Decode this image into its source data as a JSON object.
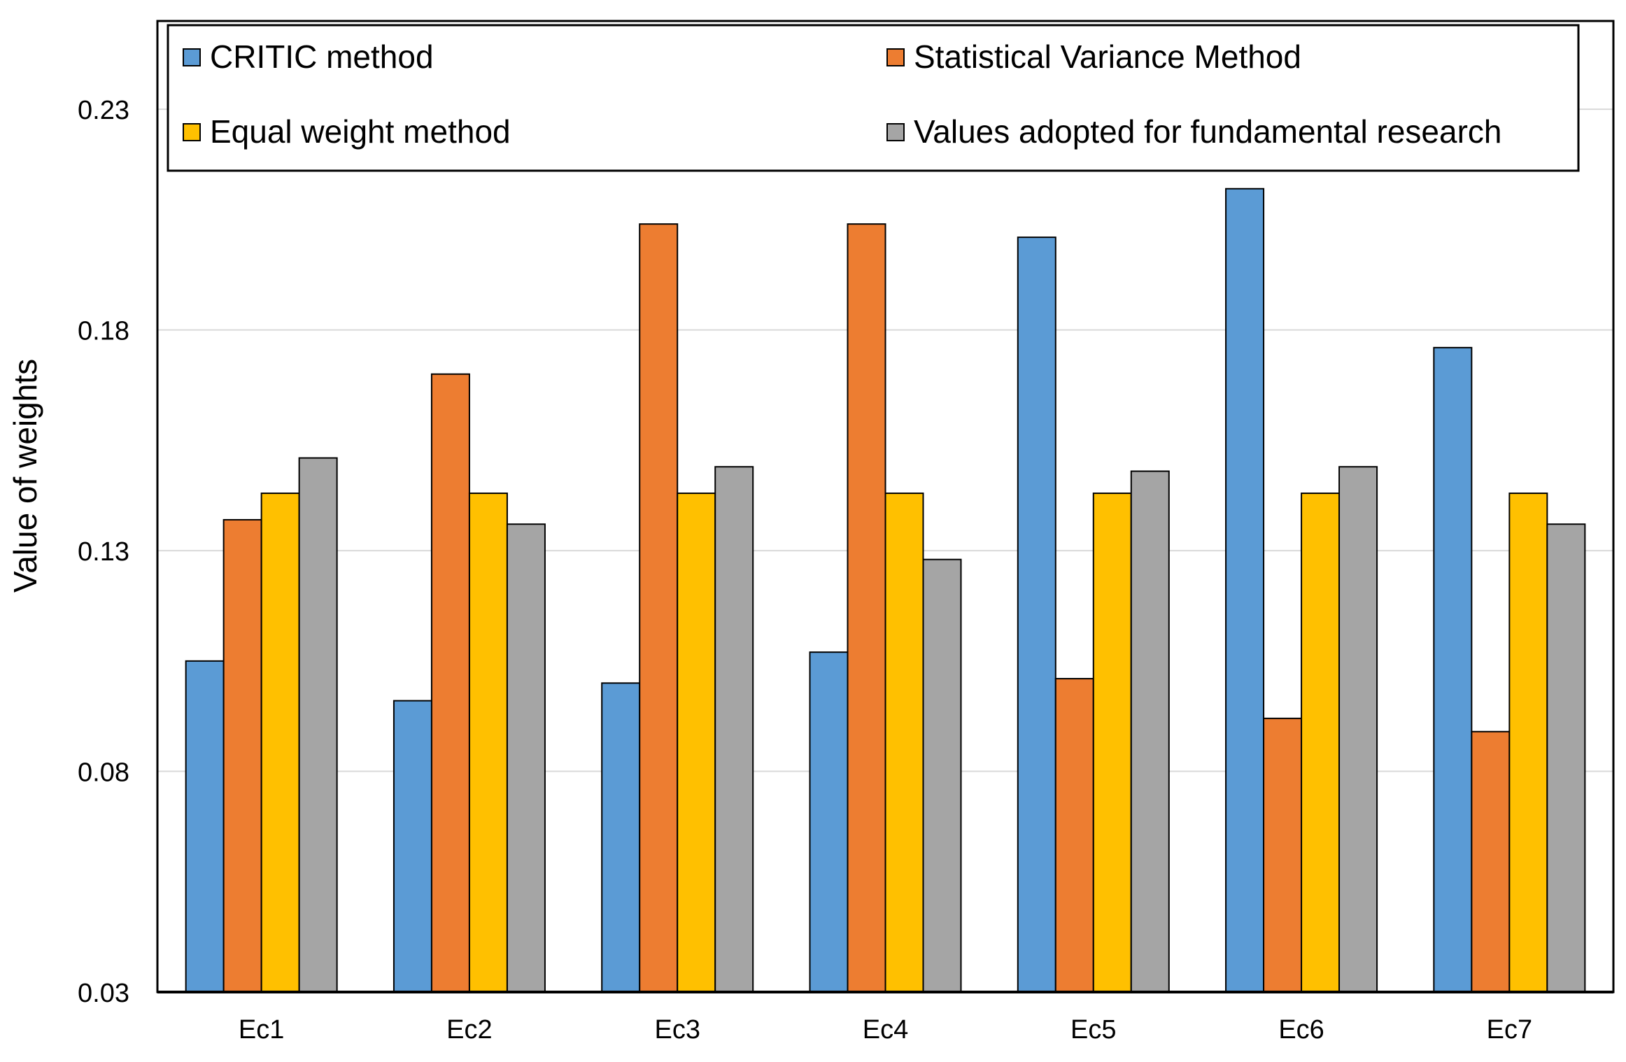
{
  "chart_data": {
    "type": "bar",
    "title": "",
    "xlabel": "",
    "ylabel": "Value of weights",
    "ylim": [
      0.03,
      0.25
    ],
    "yticks": [
      "0.03",
      "0.08",
      "0.13",
      "0.18",
      "0.23"
    ],
    "grid": true,
    "legend_position": "top",
    "categories": [
      "Ec1",
      "Ec2",
      "Ec3",
      "Ec4",
      "Ec5",
      "Ec6",
      "Ec7"
    ],
    "series": [
      {
        "name": "CRITIC method",
        "color": "#5B9BD5",
        "values": [
          0.105,
          0.096,
          0.1,
          0.107,
          0.201,
          0.212,
          0.176
        ]
      },
      {
        "name": "Statistical Variance Method",
        "color": "#ED7D31",
        "values": [
          0.137,
          0.17,
          0.204,
          0.204,
          0.101,
          0.092,
          0.089
        ]
      },
      {
        "name": "Equal weight method",
        "color": "#FFC000",
        "values": [
          0.143,
          0.143,
          0.143,
          0.143,
          0.143,
          0.143,
          0.143
        ]
      },
      {
        "name": "Values adopted for fundamental research",
        "color": "#A5A5A5",
        "values": [
          0.151,
          0.136,
          0.149,
          0.128,
          0.148,
          0.149,
          0.136
        ]
      }
    ]
  }
}
